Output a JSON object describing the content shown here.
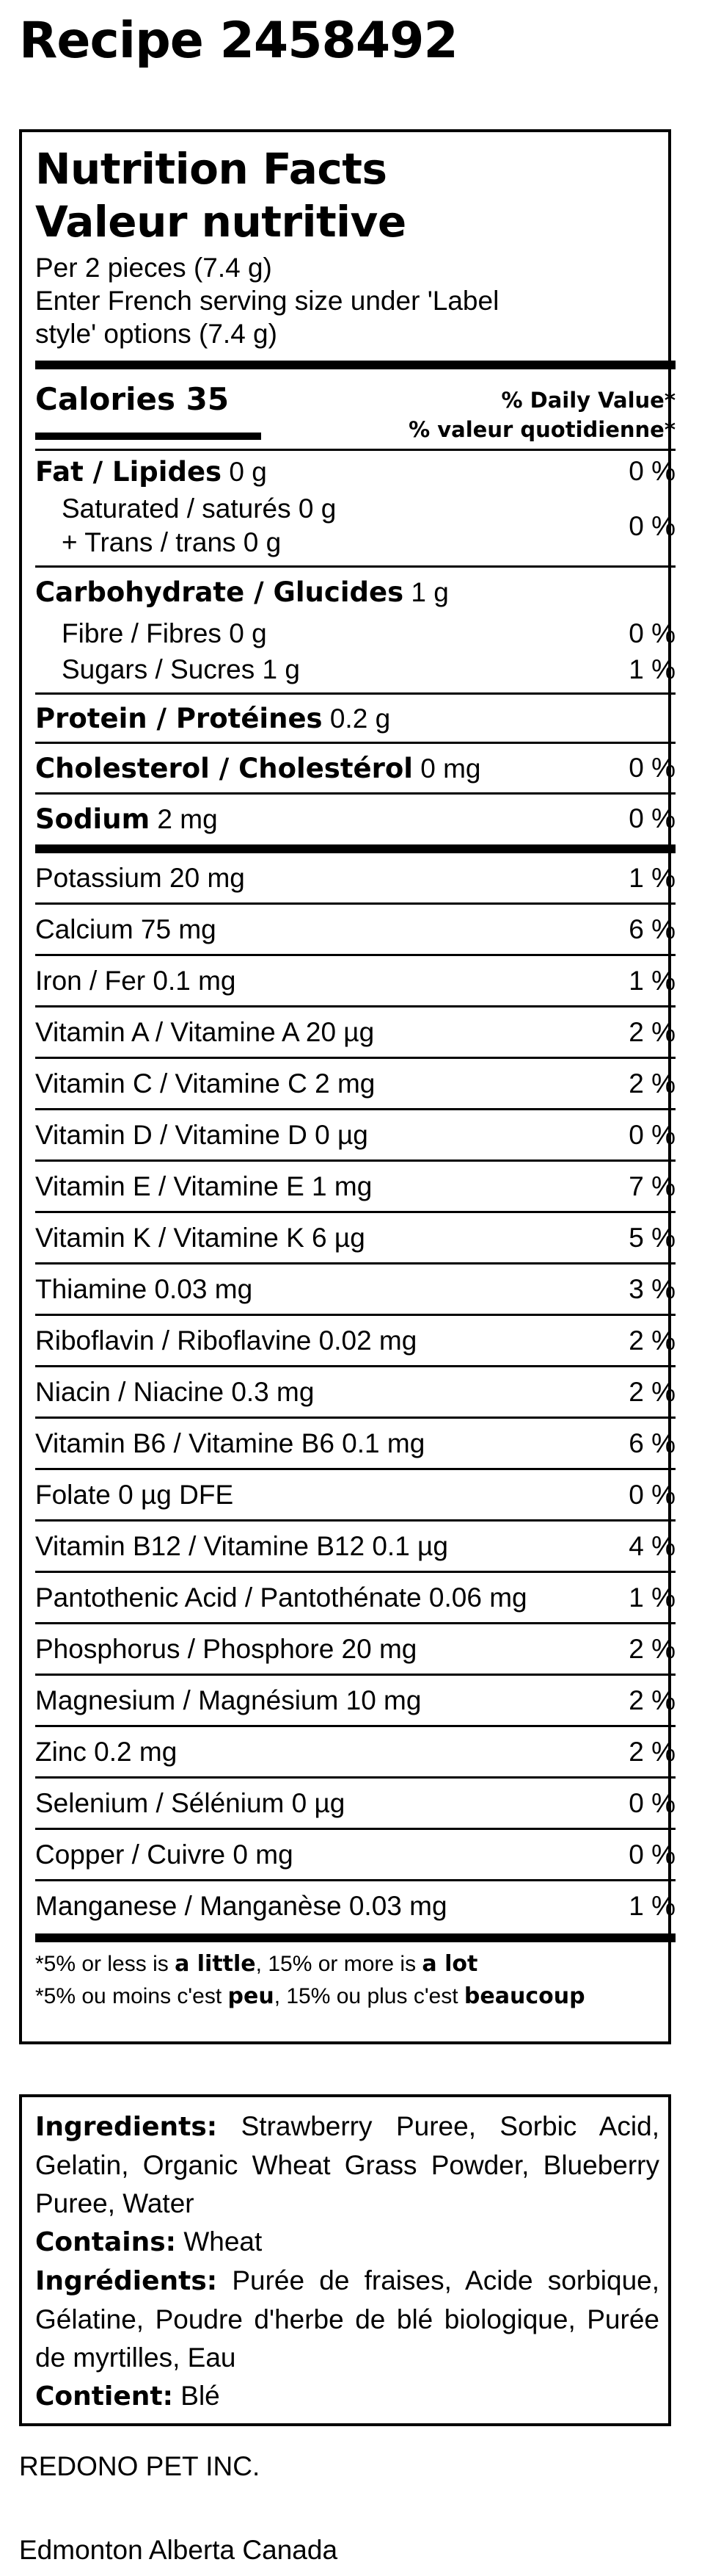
{
  "page": {
    "title": "Recipe 2458492"
  },
  "nutrition": {
    "title_en": "Nutrition Facts",
    "title_fr": "Valeur nutritive",
    "serving_lines": [
      "Per 2 pieces (7.4 g)",
      "Enter French serving size under 'Label",
      "style' options (7.4 g)"
    ],
    "calories_label": "Calories 35",
    "dv_en": "% Daily Value*",
    "dv_fr": "% valeur quotidienne*",
    "fat": {
      "label": "Fat / Lipides",
      "amount": " 0 g",
      "pct": "0 %"
    },
    "saturated": {
      "label": "Saturated / saturés 0 g"
    },
    "trans": {
      "label": "+ Trans / trans 0 g"
    },
    "sat_trans_pct": "0 %",
    "carb": {
      "label": "Carbohydrate / Glucides",
      "amount": " 1 g"
    },
    "fibre": {
      "label": "Fibre / Fibres 0 g",
      "pct": "0 %"
    },
    "sugars": {
      "label": "Sugars / Sucres 1 g",
      "pct": "1 %"
    },
    "protein": {
      "label": "Protein / Protéines",
      "amount": " 0.2 g"
    },
    "cholesterol": {
      "label": "Cholesterol / Cholestérol",
      "amount": " 0 mg",
      "pct": "0 %"
    },
    "sodium": {
      "label": "Sodium",
      "amount": " 2 mg",
      "pct": "0 %"
    },
    "micros": [
      {
        "label": "Potassium 20 mg",
        "pct": "1 %"
      },
      {
        "label": "Calcium 75 mg",
        "pct": "6 %"
      },
      {
        "label": "Iron / Fer 0.1 mg",
        "pct": "1 %"
      },
      {
        "label": "Vitamin A / Vitamine A 20 µg",
        "pct": "2 %"
      },
      {
        "label": "Vitamin C / Vitamine C 2 mg",
        "pct": "2 %"
      },
      {
        "label": "Vitamin D / Vitamine D 0 µg",
        "pct": "0 %"
      },
      {
        "label": "Vitamin E / Vitamine E 1 mg",
        "pct": "7 %"
      },
      {
        "label": "Vitamin K / Vitamine K 6 µg",
        "pct": "5 %"
      },
      {
        "label": "Thiamine 0.03 mg",
        "pct": "3 %"
      },
      {
        "label": "Riboflavin / Riboflavine 0.02 mg",
        "pct": "2 %"
      },
      {
        "label": "Niacin / Niacine 0.3 mg",
        "pct": "2 %"
      },
      {
        "label": "Vitamin B6 / Vitamine B6 0.1 mg",
        "pct": "6 %"
      },
      {
        "label": "Folate 0 µg DFE",
        "pct": "0 %"
      },
      {
        "label": "Vitamin B12 / Vitamine B12 0.1 µg",
        "pct": "4 %"
      },
      {
        "label": "Pantothenic Acid / Pantothénate 0.06 mg",
        "pct": "1 %"
      },
      {
        "label": "Phosphorus / Phosphore 20 mg",
        "pct": "2 %"
      },
      {
        "label": "Magnesium / Magnésium 10 mg",
        "pct": "2 %"
      },
      {
        "label": "Zinc 0.2 mg",
        "pct": "2 %"
      },
      {
        "label": "Selenium / Sélénium 0 µg",
        "pct": "0 %"
      },
      {
        "label": "Copper / Cuivre 0 mg",
        "pct": "0 %"
      },
      {
        "label": "Manganese / Manganèse 0.03 mg",
        "pct": "1 %"
      }
    ],
    "footnote_en": {
      "a": "*5% or less is ",
      "b": "a little",
      "c": ", 15% or more is ",
      "d": "a lot"
    },
    "footnote_fr": {
      "a": "*5% ou moins c'est ",
      "b": "peu",
      "c": ", 15% ou plus c'est ",
      "d": "beaucoup"
    }
  },
  "ingredients": {
    "en_label": "Ingredients:",
    "en_text": " Strawberry Puree, Sorbic Acid, Gelatin, Organic Wheat Grass Powder, Blueberry Puree, Water",
    "contains_label": "Contains:",
    "contains_text": " Wheat",
    "fr_label": "Ingrédients:",
    "fr_text": " Purée de fraises, Acide sorbique, Gélatine, Poudre d'herbe de blé biologique, Purée de myrtilles, Eau",
    "contient_label": "Contient:",
    "contient_text": " Blé"
  },
  "company": {
    "name": "REDONO PET INC.",
    "location": "Edmonton Alberta Canada"
  }
}
